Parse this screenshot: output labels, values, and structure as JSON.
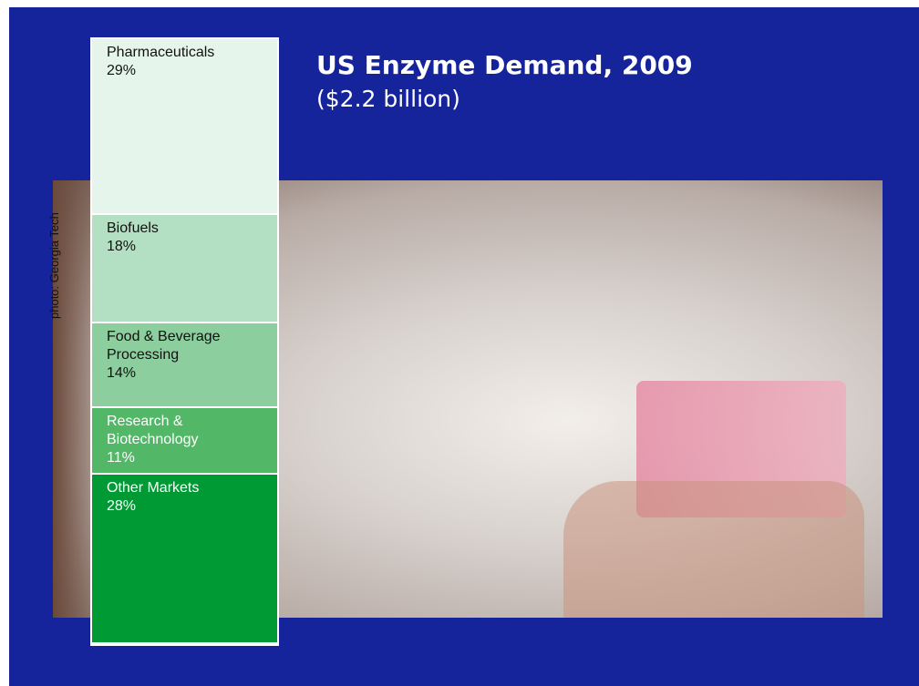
{
  "chart_data": {
    "type": "stacked_bar",
    "title": "US Enzyme Demand, 2009",
    "subtitle": "($2.2 billion)",
    "annotation": "photo: Georgia Tech",
    "categories": [
      "Pharmaceuticals",
      "Biofuels",
      "Food & Beverage Processing",
      "Research & Biotechnology",
      "Other Markets"
    ],
    "values": [
      29,
      18,
      14,
      11,
      28
    ],
    "value_labels": [
      "29%",
      "18%",
      "14%",
      "11%",
      "28%"
    ],
    "colors": [
      "#e6f5ec",
      "#b3e0c2",
      "#8cce9d",
      "#52b767",
      "#009a35"
    ],
    "text_colors": [
      "#111111",
      "#111111",
      "#111111",
      "#ffffff",
      "#ffffff"
    ]
  }
}
